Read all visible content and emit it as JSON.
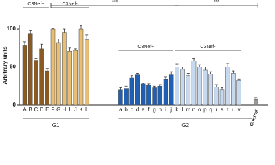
{
  "chart_data": {
    "type": "bar",
    "y_label": "Arbitrary units",
    "categories": [
      "A",
      "B",
      "C",
      "D",
      "E",
      "F",
      "G",
      "H",
      "I",
      "J",
      "K",
      "L",
      null,
      null,
      null,
      null,
      null,
      "a",
      "b",
      "c",
      "d",
      "e",
      "f",
      "g",
      "h",
      "i",
      "j",
      "k",
      "l",
      "m",
      "n",
      "o",
      "p",
      "q",
      "r",
      "s",
      "t",
      "u",
      "v",
      null,
      null,
      "Control"
    ],
    "values": [
      78,
      94,
      59,
      74,
      45,
      100,
      82,
      95,
      71,
      72,
      100,
      86,
      null,
      null,
      null,
      null,
      null,
      20,
      22,
      36,
      40,
      28,
      26,
      23,
      25,
      34,
      40,
      50,
      47,
      39,
      58,
      50,
      46,
      41,
      24,
      20,
      50,
      42,
      32,
      null,
      null,
      8
    ],
    "errors": [
      5,
      4,
      2,
      6,
      3,
      1,
      5,
      5,
      4,
      2,
      4,
      6,
      null,
      null,
      null,
      null,
      null,
      3,
      3,
      3,
      2,
      1,
      2,
      2,
      2,
      3,
      4,
      4,
      3,
      3,
      3,
      3,
      4,
      3,
      3,
      3,
      5,
      3,
      2,
      null,
      null,
      2
    ],
    "colors": [
      "#8b5a22",
      "#8b5a22",
      "#8b5a22",
      "#8b5a22",
      "#8b5a22",
      "#e8be74",
      "#e8be74",
      "#e8be74",
      "#e8be74",
      "#e8be74",
      "#e8be74",
      "#e8be74",
      null,
      null,
      null,
      null,
      null,
      "#1f5fb4",
      "#1f5fb4",
      "#1f5fb4",
      "#1f5fb4",
      "#1f5fb4",
      "#1f5fb4",
      "#1f5fb4",
      "#1f5fb4",
      "#1f5fb4",
      "#1f5fb4",
      "#c7d9ef",
      "#c7d9ef",
      "#c7d9ef",
      "#c7d9ef",
      "#c7d9ef",
      "#c7d9ef",
      "#c7d9ef",
      "#c7d9ef",
      "#c7d9ef",
      "#c7d9ef",
      "#c7d9ef",
      "#c7d9ef",
      null,
      null,
      "#999999"
    ],
    "ylim": [
      0,
      105
    ],
    "yticks": [
      0,
      50,
      100
    ],
    "annotations": [
      "C3Nef+",
      "C3Nef-",
      "***",
      "***",
      "C3Nef+",
      "C3Nef-"
    ],
    "groups": [
      "G1",
      "G2"
    ]
  }
}
